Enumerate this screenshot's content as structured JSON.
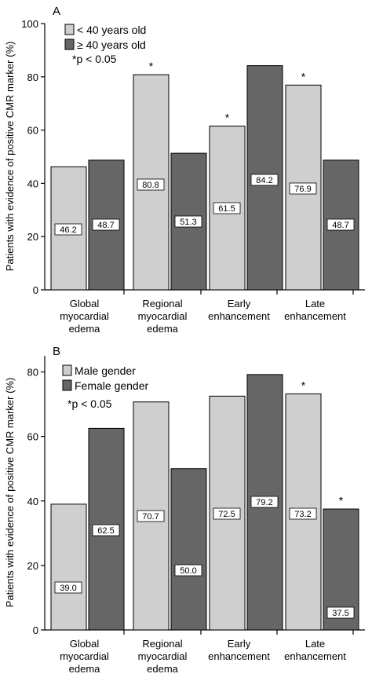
{
  "chart_data": [
    {
      "panel_label": "A",
      "type": "bar",
      "categories": [
        [
          "Global",
          "myocardial",
          "edema"
        ],
        [
          "Regional",
          "myocardial",
          "edema"
        ],
        [
          "Early",
          "enhancement"
        ],
        [
          "Late",
          "enhancement"
        ]
      ],
      "series": [
        {
          "name": "< 40 years old",
          "values": [
            46.2,
            80.8,
            61.5,
            76.9
          ],
          "color": "#cfcfcf"
        },
        {
          "name": "≥ 40 years old",
          "values": [
            48.7,
            51.3,
            84.2,
            48.7
          ],
          "color": "#666666"
        }
      ],
      "significance": [
        {
          "category": 1,
          "series": 0,
          "mark": "*"
        },
        {
          "category": 2,
          "series": 0,
          "mark": "*"
        },
        {
          "category": 3,
          "series": 0,
          "mark": "*"
        }
      ],
      "note": "*p < 0.05",
      "ylim": [
        0,
        100
      ],
      "yticks": [
        0,
        20,
        40,
        60,
        80,
        100
      ],
      "legend": "top-left",
      "grid": false
    },
    {
      "panel_label": "B",
      "type": "bar",
      "categories": [
        [
          "Global",
          "myocardial",
          "edema"
        ],
        [
          "Regional",
          "myocardial",
          "edema"
        ],
        [
          "Early",
          "enhancement"
        ],
        [
          "Late",
          "enhancement"
        ]
      ],
      "series": [
        {
          "name": "Male gender",
          "values": [
            39.0,
            70.7,
            72.5,
            73.2
          ],
          "color": "#cfcfcf"
        },
        {
          "name": "Female gender",
          "values": [
            62.5,
            50.0,
            79.2,
            37.5
          ],
          "color": "#666666"
        }
      ],
      "significance": [
        {
          "category": 3,
          "series": 0,
          "mark": "*"
        },
        {
          "category": 3,
          "series": 1,
          "mark": "*"
        }
      ],
      "note": "*p < 0.05",
      "ylim": [
        0,
        85
      ],
      "yticks": [
        0,
        20,
        40,
        60,
        80
      ],
      "legend": "top-left",
      "grid": false
    }
  ],
  "ylabel": "Patients with evidence of positive CMR marker (%)"
}
